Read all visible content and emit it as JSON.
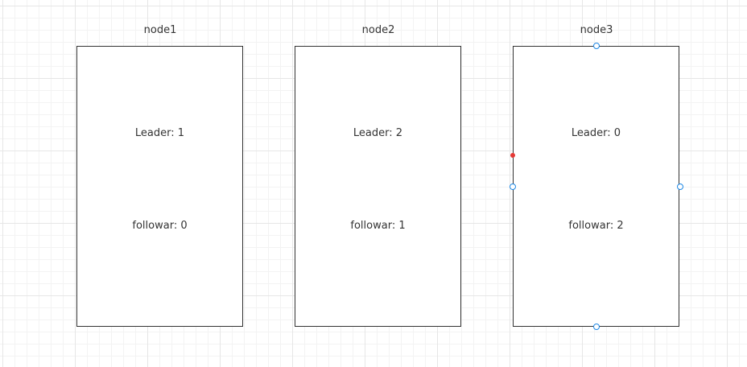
{
  "nodes": [
    {
      "title": "node1",
      "leader_text": "Leader: 1",
      "follower_text": "followar: 0",
      "selected": false
    },
    {
      "title": "node2",
      "leader_text": "Leader: 2",
      "follower_text": "followar: 1",
      "selected": false
    },
    {
      "title": "node3",
      "leader_text": "Leader: 0",
      "follower_text": "followar: 2",
      "selected": true
    }
  ],
  "colors": {
    "border": "#333333",
    "text": "#333333",
    "handle": "#1e88e5",
    "marker": "#e53935"
  }
}
